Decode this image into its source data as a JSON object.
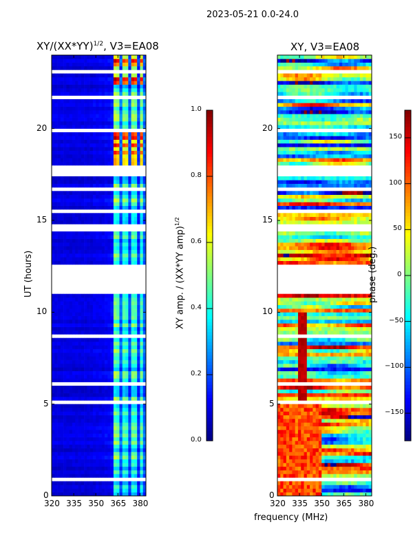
{
  "suptitle": "2023-05-21 0.0-24.0",
  "chart_data": [
    {
      "type": "heatmap",
      "title_main": "XY/(XX*YY)",
      "title_exp": "1/2",
      "title_tail": ", V3=EA08",
      "ylabel": "UT (hours)",
      "xlabel": "",
      "xlim": [
        320,
        384
      ],
      "ylim": [
        0,
        24
      ],
      "xticks": [
        320,
        335,
        350,
        365,
        380
      ],
      "yticks": [
        0,
        5,
        10,
        15,
        20
      ],
      "colorbar": {
        "label_main": "XY amp. / (XX*YY amp)",
        "label_exp": "1/2",
        "range": [
          0,
          1
        ],
        "ticks": [
          "0.0",
          "0.2",
          "0.4",
          "0.6",
          "0.8",
          "1.0"
        ],
        "cmap": "jet"
      },
      "freq_bins_mhz": [
        320,
        322,
        324,
        326,
        328,
        330,
        332,
        334,
        336,
        338,
        340,
        342,
        344,
        346,
        348,
        350,
        352,
        354,
        356,
        358,
        360,
        362,
        364,
        366,
        368,
        370,
        372,
        374,
        376,
        378,
        380,
        382
      ],
      "freq_profile": [
        0.08,
        0.08,
        0.08,
        0.08,
        0.08,
        0.08,
        0.08,
        0.08,
        0.08,
        0.08,
        0.08,
        0.08,
        0.08,
        0.08,
        0.09,
        0.09,
        0.09,
        0.09,
        0.1,
        0.1,
        0.12,
        0.45,
        0.42,
        0.2,
        0.4,
        0.38,
        0.18,
        0.42,
        0.4,
        0.16,
        0.4,
        0.2
      ],
      "bright_hours": [
        [
          18.0,
          20.0
        ],
        [
          22.4,
          24.0
        ]
      ],
      "flagged_hours": [
        [
          11.0,
          12.6
        ],
        [
          14.4,
          14.8
        ],
        [
          17.5,
          18.0
        ],
        [
          19.8,
          20.0
        ],
        [
          21.6,
          21.8
        ],
        [
          6.1,
          6.3
        ],
        [
          5.1,
          5.3
        ],
        [
          0.9,
          1.1
        ],
        [
          3.4,
          3.5
        ],
        [
          8.6,
          8.8
        ],
        [
          10.6,
          10.7
        ],
        [
          15.5,
          15.6
        ],
        [
          16.7,
          16.8
        ],
        [
          23.1,
          23.2
        ]
      ]
    },
    {
      "type": "heatmap",
      "title_main": "XY, V3=EA08",
      "ylabel": "",
      "xlabel": "frequency (MHz)",
      "xlim": [
        320,
        384
      ],
      "ylim": [
        0,
        24
      ],
      "xticks": [
        320,
        335,
        350,
        365,
        380
      ],
      "yticks": [
        0,
        5,
        10,
        15,
        20
      ],
      "colorbar": {
        "label_main": "phase (deg.)",
        "range": [
          -180,
          180
        ],
        "ticks": [
          "-150",
          "-100",
          "-50",
          "0",
          "50",
          "100",
          "150"
        ],
        "cmap": "jet"
      },
      "flagged_hours": [
        [
          11.0,
          12.6
        ],
        [
          14.4,
          14.8
        ],
        [
          17.5,
          18.0
        ],
        [
          19.8,
          20.0
        ],
        [
          21.6,
          21.8
        ],
        [
          6.1,
          6.3
        ],
        [
          5.1,
          5.3
        ],
        [
          0.9,
          1.1
        ],
        [
          3.4,
          3.5
        ],
        [
          8.6,
          8.8
        ],
        [
          10.6,
          10.7
        ],
        [
          15.5,
          15.6
        ],
        [
          16.7,
          16.8
        ],
        [
          23.1,
          23.2
        ]
      ]
    }
  ]
}
